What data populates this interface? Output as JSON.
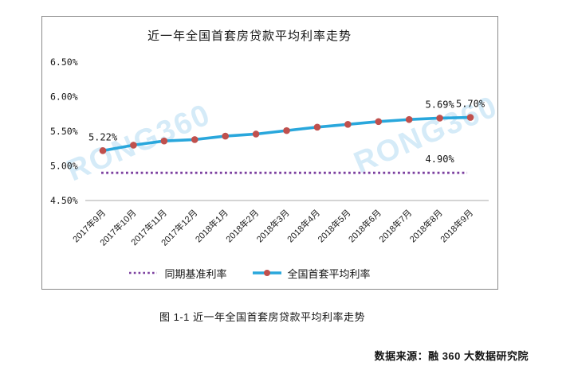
{
  "watermark": {
    "text": "RONG360"
  },
  "chart_data": {
    "type": "line",
    "title": "近一年全国首套房贷款平均利率走势",
    "categories": [
      "2017年9月",
      "2017年10月",
      "2017年11月",
      "2017年12月",
      "2018年1月",
      "2018年2月",
      "2018年3月",
      "2018年4月",
      "2018年5月",
      "2018年6月",
      "2018年7月",
      "2018年8月",
      "2018年9月"
    ],
    "series": [
      {
        "name": "同期基准利率",
        "values": [
          4.9,
          4.9,
          4.9,
          4.9,
          4.9,
          4.9,
          4.9,
          4.9,
          4.9,
          4.9,
          4.9,
          4.9,
          4.9
        ],
        "color": "#7B3F9F",
        "line_style": "dotted",
        "marker": "none"
      },
      {
        "name": "全国首套平均利率",
        "values": [
          5.22,
          5.3,
          5.36,
          5.38,
          5.43,
          5.46,
          5.51,
          5.56,
          5.6,
          5.64,
          5.67,
          5.69,
          5.7
        ],
        "color": "#29A7DC",
        "line_style": "solid",
        "marker": "circle",
        "marker_color": "#C0504D"
      }
    ],
    "point_labels": [
      {
        "series": 1,
        "index": 0,
        "text": "5.22%"
      },
      {
        "series": 1,
        "index": 11,
        "text": "5.69%"
      },
      {
        "series": 1,
        "index": 12,
        "text": "5.70%"
      },
      {
        "series": 0,
        "index": 11,
        "text": "4.90%"
      }
    ],
    "yticks": [
      {
        "value": 6.5,
        "label": "6.50%"
      },
      {
        "value": 6.0,
        "label": "6.00%"
      },
      {
        "value": 5.5,
        "label": "5.50%"
      },
      {
        "value": 5.0,
        "label": "5.00%"
      },
      {
        "value": 4.5,
        "label": "4.50%"
      }
    ],
    "ylim": [
      4.5,
      6.73
    ],
    "grid": false,
    "legend_position": "bottom",
    "watermark_color": "#D5EBF8"
  },
  "caption": "图 1-1 近一年全国首套房贷款平均利率走势",
  "source": "数据来源：融 360 大数据研究院"
}
